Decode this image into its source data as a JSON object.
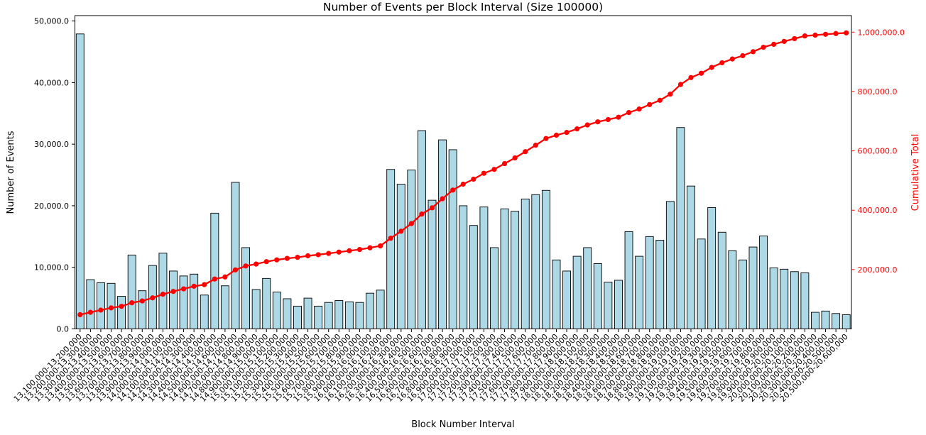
{
  "chart_data": {
    "type": "bar",
    "title": "Number of Events per Block Interval (Size 100000)",
    "xlabel": "Block Number Interval",
    "ylabel": "Number of Events",
    "ylabel_right": "Cumulative Total",
    "background_color": "#ffffff",
    "bar_color": "#add8e6",
    "bar_edge_color": "#000000",
    "line_color": "#ff0000",
    "grid": false,
    "legend": null,
    "x_tick_rotation_deg": 45,
    "categories": [
      "13,100,000-13,200,000",
      "13,200,000-13,300,000",
      "13,300,000-13,400,000",
      "13,400,000-13,500,000",
      "13,500,000-13,600,000",
      "13,600,000-13,700,000",
      "13,700,000-13,800,000",
      "13,800,000-13,900,000",
      "13,900,000-14,000,000",
      "14,000,000-14,100,000",
      "14,100,000-14,200,000",
      "14,200,000-14,300,000",
      "14,300,000-14,400,000",
      "14,400,000-14,500,000",
      "14,500,000-14,600,000",
      "14,600,000-14,700,000",
      "14,700,000-14,800,000",
      "14,800,000-14,900,000",
      "14,900,000-15,000,000",
      "15,000,000-15,100,000",
      "15,100,000-15,200,000",
      "15,200,000-15,300,000",
      "15,300,000-15,400,000",
      "15,400,000-15,500,000",
      "15,500,000-15,600,000",
      "15,600,000-15,700,000",
      "15,700,000-15,800,000",
      "15,800,000-15,900,000",
      "15,900,000-16,000,000",
      "16,000,000-16,100,000",
      "16,100,000-16,200,000",
      "16,200,000-16,300,000",
      "16,300,000-16,400,000",
      "16,400,000-16,500,000",
      "16,500,000-16,600,000",
      "16,600,000-16,700,000",
      "16,700,000-16,800,000",
      "16,800,000-16,900,000",
      "16,900,000-17,000,000",
      "17,000,000-17,100,000",
      "17,100,000-17,200,000",
      "17,200,000-17,300,000",
      "17,300,000-17,400,000",
      "17,400,000-17,500,000",
      "17,500,000-17,600,000",
      "17,600,000-17,700,000",
      "17,700,000-17,800,000",
      "17,800,000-17,900,000",
      "17,900,000-18,000,000",
      "18,000,000-18,100,000",
      "18,100,000-18,200,000",
      "18,200,000-18,300,000",
      "18,300,000-18,400,000",
      "18,400,000-18,500,000",
      "18,500,000-18,600,000",
      "18,600,000-18,700,000",
      "18,700,000-18,800,000",
      "18,800,000-18,900,000",
      "18,900,000-19,000,000",
      "19,000,000-19,100,000",
      "19,100,000-19,200,000",
      "19,200,000-19,300,000",
      "19,300,000-19,400,000",
      "19,400,000-19,500,000",
      "19,500,000-19,600,000",
      "19,600,000-19,700,000",
      "19,700,000-19,800,000",
      "19,800,000-19,900,000",
      "19,900,000-20,000,000",
      "20,000,000-20,100,000",
      "20,100,000-20,200,000",
      "20,200,000-20,300,000",
      "20,300,000-20,400,000",
      "20,400,000-20,500,000",
      "20,500,000-20,600,000"
    ],
    "series": [
      {
        "name": "Number of Events",
        "type": "bar",
        "color": "#add8e6",
        "values": [
          47900,
          8000,
          7500,
          7400,
          5300,
          12000,
          6200,
          10300,
          12300,
          9400,
          8600,
          8900,
          5500,
          18800,
          7000,
          23800,
          13200,
          6400,
          8200,
          6000,
          4900,
          3700,
          5000,
          3700,
          4300,
          4600,
          4400,
          4300,
          5800,
          6300,
          25900,
          23500,
          25800,
          32200,
          20900,
          30700,
          29100,
          20000,
          16800,
          19800,
          13200,
          19500,
          19100,
          21100,
          21800,
          22500,
          11200,
          9400,
          11800,
          13200,
          10600,
          7600,
          7900,
          15800,
          11800,
          15000,
          14400,
          20700,
          32700,
          23200,
          14600,
          19700,
          15700,
          12700,
          11200,
          13300,
          15100,
          9900,
          9700,
          9300,
          9100,
          2700,
          2900,
          2500,
          2300
        ]
      },
      {
        "name": "Cumulative Total",
        "type": "line",
        "color": "#ff0000",
        "values": [
          47900,
          55900,
          63400,
          70800,
          76100,
          88100,
          94300,
          104600,
          116900,
          126300,
          134900,
          143800,
          149300,
          168100,
          175100,
          198900,
          212100,
          218500,
          226700,
          232700,
          237600,
          241300,
          246300,
          250000,
          254300,
          258900,
          263300,
          267600,
          273400,
          279700,
          305600,
          329100,
          354900,
          387100,
          408000,
          438700,
          467800,
          487800,
          504600,
          524400,
          537600,
          557100,
          576200,
          597300,
          619100,
          641600,
          652800,
          662200,
          674000,
          687200,
          697800,
          705400,
          713300,
          729100,
          740900,
          755900,
          770300,
          791000,
          823700,
          846900,
          861500,
          881200,
          896900,
          909600,
          920800,
          934100,
          949200,
          959100,
          968800,
          978100,
          987200,
          989900,
          992800,
          995300,
          997600
        ]
      }
    ],
    "left_axis": {
      "label": "Number of Events",
      "color": "#000000",
      "tick_values": [
        0,
        10000,
        20000,
        30000,
        40000,
        50000
      ],
      "tick_labels": [
        "0.0",
        "10,000.0",
        "20,000.0",
        "30,000.0",
        "40,000.0",
        "50,000.0"
      ],
      "lim": [
        0,
        50900
      ]
    },
    "right_axis": {
      "label": "Cumulative Total",
      "color": "#ff0000",
      "tick_values": [
        200000,
        400000,
        600000,
        800000,
        1000000
      ],
      "tick_labels": [
        "200,000.0",
        "400,000.0",
        "600,000.0",
        "800,000.0",
        "1,000,000.0"
      ],
      "lim": [
        0,
        1055000
      ]
    }
  }
}
